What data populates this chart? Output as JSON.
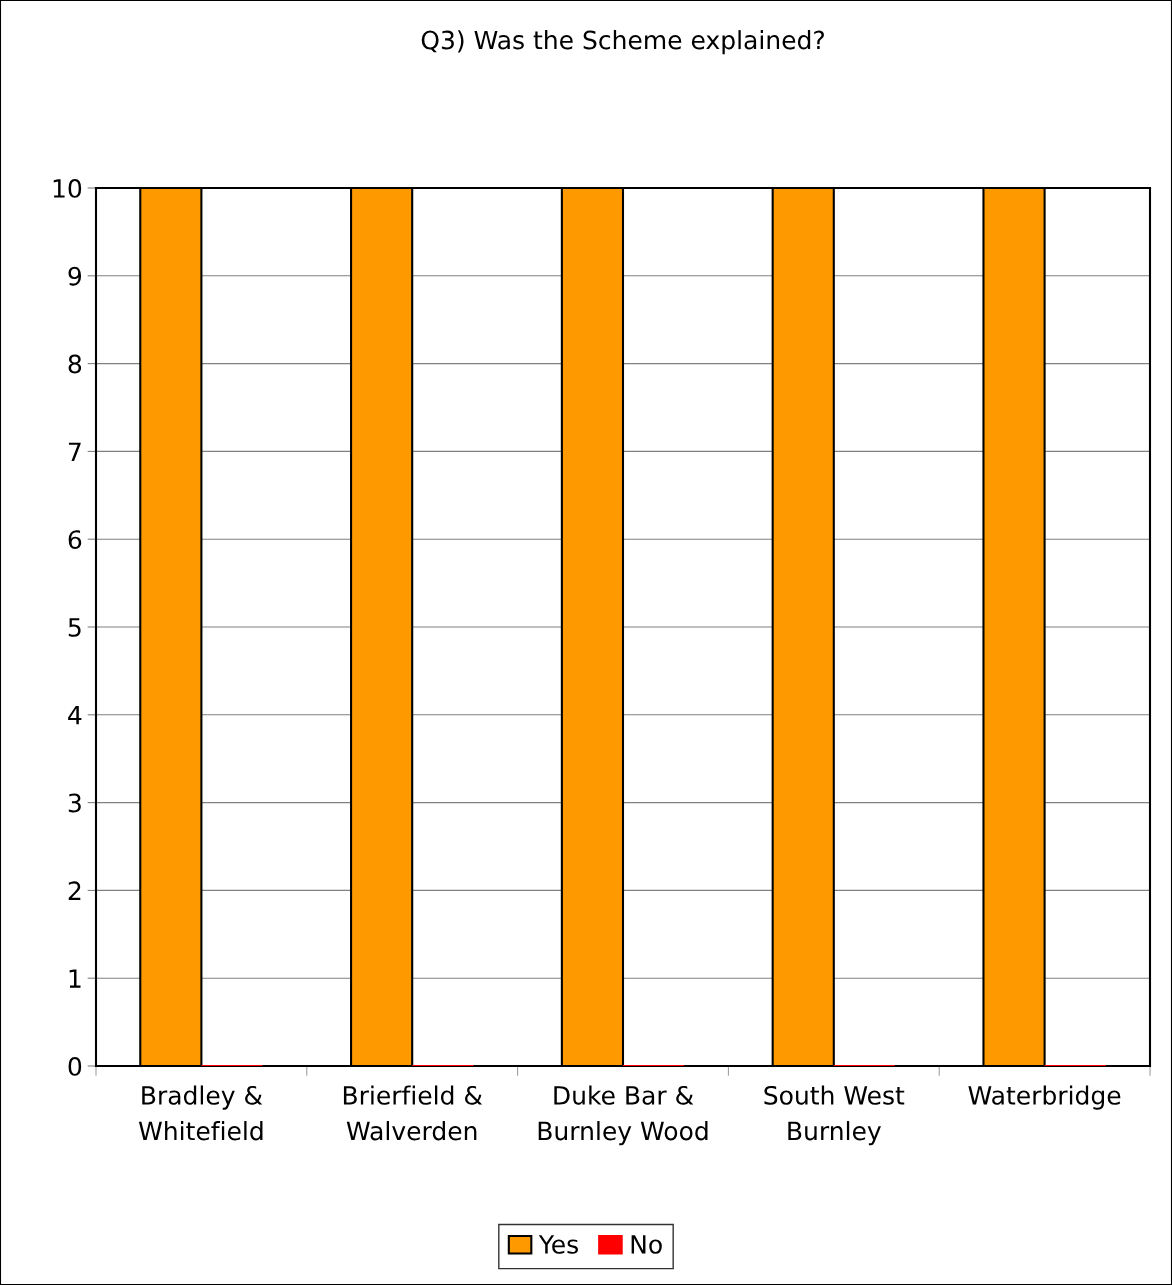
{
  "chart_data": {
    "type": "bar",
    "title": "Q3) Was the Scheme explained?",
    "categories": [
      "Bradley &\nWhitefield",
      "Brierfield &\nWalverden",
      "Duke Bar &\nBurnley Wood",
      "South West\nBurnley",
      "Waterbridge"
    ],
    "series": [
      {
        "name": "Yes",
        "color": "#ff9900",
        "values": [
          10,
          10,
          10,
          10,
          10
        ]
      },
      {
        "name": "No",
        "color": "#ff0000",
        "values": [
          0,
          0,
          0,
          0,
          0
        ]
      }
    ],
    "ylim": [
      0,
      10
    ],
    "yticks": [
      0,
      1,
      2,
      3,
      4,
      5,
      6,
      7,
      8,
      9,
      10
    ],
    "grid": "y",
    "legend": "bottom"
  }
}
